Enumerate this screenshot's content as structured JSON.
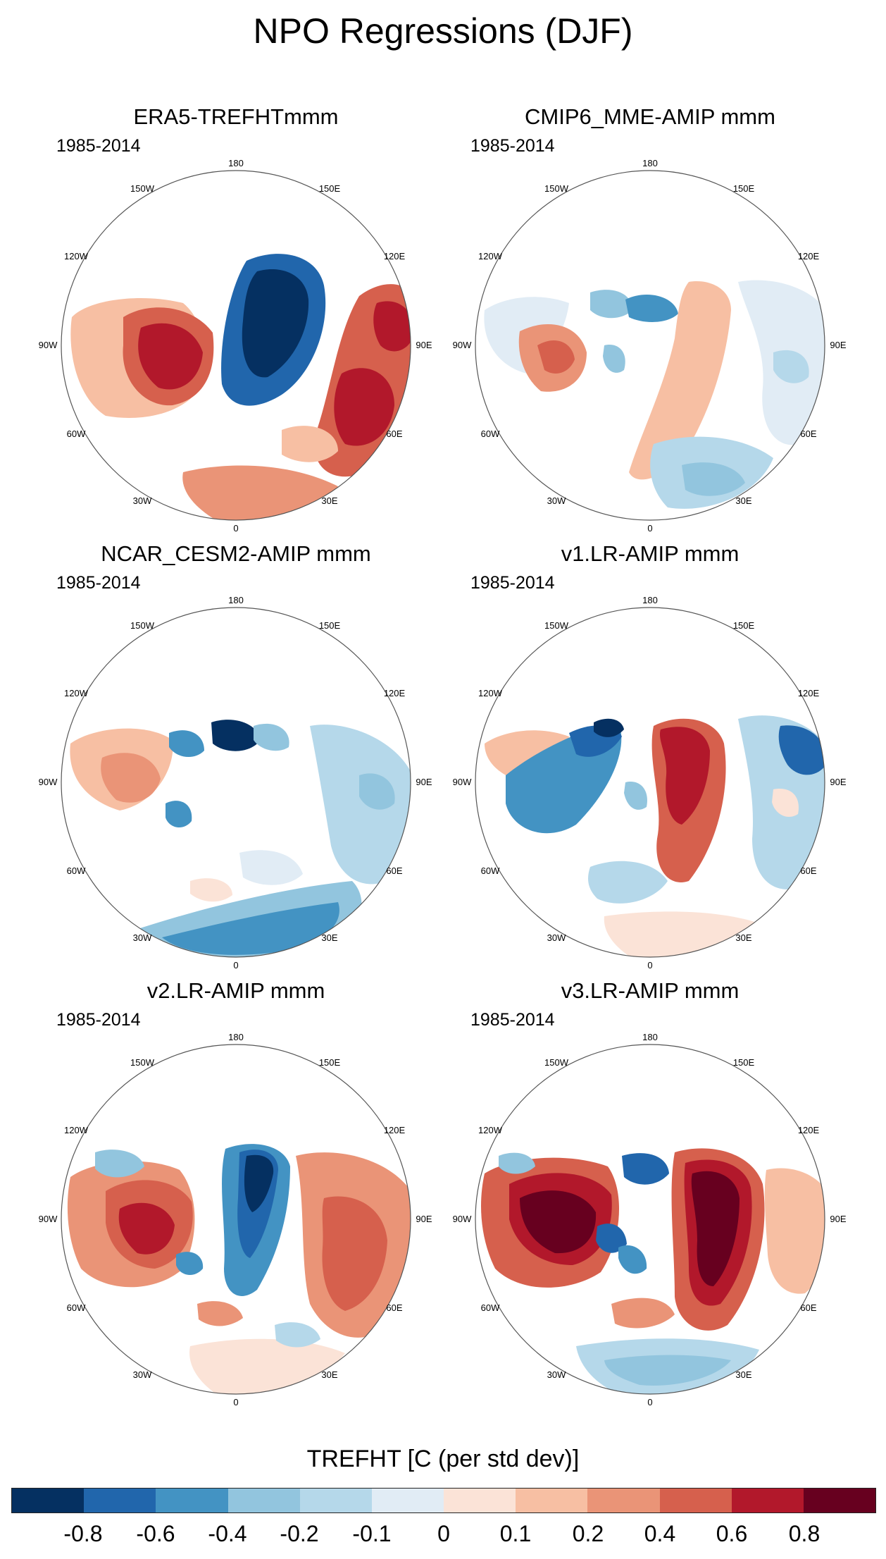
{
  "title": "NPO Regressions (DJF)",
  "panels": [
    {
      "title": "ERA5-TREFHTmmm",
      "period": "1985-2014"
    },
    {
      "title": "CMIP6_MME-AMIP  mmm",
      "period": "1985-2014"
    },
    {
      "title": "NCAR_CESM2-AMIP  mmm",
      "period": "1985-2014"
    },
    {
      "title": "v1.LR-AMIP  mmm",
      "period": "1985-2014"
    },
    {
      "title": "v2.LR-AMIP  mmm",
      "period": "1985-2014"
    },
    {
      "title": "v3.LR-AMIP  mmm",
      "period": "1985-2014"
    }
  ],
  "map_ticks": {
    "top": "180",
    "upper_right": "150E",
    "right_upper": "120E",
    "right": "90E",
    "right_lower": "60E",
    "lower_right": "30E",
    "bottom": "0",
    "lower_left": "30W",
    "left_lower": "60W",
    "left": "90W",
    "left_upper": "120W",
    "upper_left": "150W"
  },
  "colorbar": {
    "title": "TREFHT [C (per std dev)]",
    "labels": [
      "-0.8",
      "-0.6",
      "-0.4",
      "-0.2",
      "-0.1",
      "0",
      "0.1",
      "0.2",
      "0.4",
      "0.6",
      "0.8"
    ],
    "colors": [
      "#053061",
      "#2166ac",
      "#4393c3",
      "#92c5de",
      "#b5d8ea",
      "#e1ecf5",
      "#fbe3d7",
      "#f7bfa3",
      "#ea9477",
      "#d6604d",
      "#b2182b",
      "#67001f"
    ]
  }
}
